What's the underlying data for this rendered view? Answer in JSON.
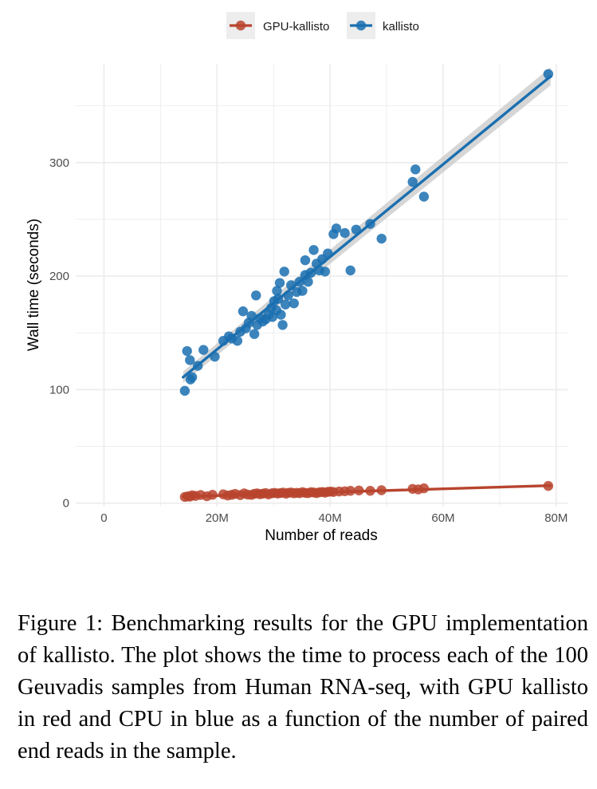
{
  "chart_data": {
    "type": "scatter",
    "xlabel": "Number of reads",
    "ylabel": "Wall time (seconds)",
    "xlim": [
      -5000000,
      82000000
    ],
    "ylim": [
      -3,
      387
    ],
    "x_ticks": [
      0,
      20000000,
      40000000,
      60000000,
      80000000
    ],
    "x_tick_labels": [
      "0",
      "20M",
      "40M",
      "60M",
      "80M"
    ],
    "y_ticks": [
      0,
      100,
      200,
      300
    ],
    "y_tick_labels": [
      "0",
      "100",
      "200",
      "300"
    ],
    "grid": true,
    "legend_position": "top",
    "series": [
      {
        "name": "GPU-kallisto",
        "color": "#B8442E",
        "points": [
          [
            14.3,
            5.5
          ],
          [
            14.8,
            6.0
          ],
          [
            15.2,
            5.8
          ],
          [
            15.6,
            7.0
          ],
          [
            16.2,
            6.4
          ],
          [
            17.1,
            7.2
          ],
          [
            18.2,
            6.1
          ],
          [
            19.2,
            7.4
          ],
          [
            21.1,
            7.8
          ],
          [
            21.9,
            6.8
          ],
          [
            22.6,
            7.4
          ],
          [
            23.2,
            8.2
          ],
          [
            24.1,
            7.1
          ],
          [
            24.8,
            8.6
          ],
          [
            25.4,
            7.6
          ],
          [
            26.1,
            7.3
          ],
          [
            26.6,
            8.3
          ],
          [
            27.1,
            8.6
          ],
          [
            27.6,
            7.9
          ],
          [
            28.1,
            8.4
          ],
          [
            28.6,
            8.9
          ],
          [
            29.1,
            7.7
          ],
          [
            29.7,
            8.7
          ],
          [
            30.2,
            9.1
          ],
          [
            30.7,
            8.5
          ],
          [
            31.2,
            8.9
          ],
          [
            31.7,
            9.3
          ],
          [
            32.2,
            8.4
          ],
          [
            32.6,
            9.1
          ],
          [
            33.1,
            9.4
          ],
          [
            33.6,
            8.7
          ],
          [
            34.1,
            9.2
          ],
          [
            34.6,
            8.8
          ],
          [
            35.1,
            9.7
          ],
          [
            35.6,
            9.1
          ],
          [
            36.1,
            8.8
          ],
          [
            36.6,
            9.7
          ],
          [
            37.1,
            9.4
          ],
          [
            37.6,
            8.9
          ],
          [
            38.1,
            9.6
          ],
          [
            38.6,
            9.9
          ],
          [
            39.1,
            9.3
          ],
          [
            39.6,
            10.0
          ],
          [
            40.1,
            10.2
          ],
          [
            40.6,
            9.9
          ],
          [
            41.6,
            10.3
          ],
          [
            42.6,
            10.5
          ],
          [
            43.6,
            10.9
          ],
          [
            45.1,
            11.2
          ],
          [
            47.1,
            10.9
          ],
          [
            49.1,
            11.4
          ],
          [
            54.6,
            12.6
          ],
          [
            55.6,
            12.1
          ],
          [
            56.6,
            13.1
          ],
          [
            78.6,
            15.2
          ]
        ],
        "fit_start": [
          14,
          5.8
        ],
        "fit_end": [
          79,
          15.5
        ]
      },
      {
        "name": "kallisto",
        "color": "#1A6FB0",
        "points": [
          [
            14.3,
            99
          ],
          [
            14.7,
            134
          ],
          [
            15.2,
            126
          ],
          [
            15.3,
            109
          ],
          [
            15.6,
            111
          ],
          [
            16.6,
            121
          ],
          [
            17.6,
            135
          ],
          [
            19.6,
            129
          ],
          [
            21.1,
            143
          ],
          [
            22.1,
            147
          ],
          [
            22.6,
            145
          ],
          [
            23.6,
            143
          ],
          [
            24.1,
            151
          ],
          [
            24.6,
            169
          ],
          [
            25.1,
            154
          ],
          [
            25.6,
            159
          ],
          [
            26.1,
            165
          ],
          [
            26.6,
            149
          ],
          [
            26.9,
            183
          ],
          [
            27.1,
            157
          ],
          [
            27.6,
            163
          ],
          [
            28.1,
            160
          ],
          [
            28.6,
            162
          ],
          [
            29.1,
            166
          ],
          [
            29.6,
            172
          ],
          [
            29.8,
            164
          ],
          [
            30.1,
            178
          ],
          [
            30.5,
            170
          ],
          [
            30.6,
            187
          ],
          [
            30.8,
            180
          ],
          [
            31.1,
            194
          ],
          [
            31.3,
            166
          ],
          [
            31.6,
            157
          ],
          [
            31.9,
            204
          ],
          [
            32.1,
            175
          ],
          [
            32.6,
            183
          ],
          [
            33.1,
            192
          ],
          [
            33.6,
            176
          ],
          [
            34.1,
            186
          ],
          [
            34.6,
            195
          ],
          [
            35.1,
            187
          ],
          [
            35.6,
            201
          ],
          [
            35.6,
            214
          ],
          [
            36.1,
            195
          ],
          [
            36.6,
            203
          ],
          [
            37.1,
            223
          ],
          [
            37.6,
            211
          ],
          [
            38.1,
            205
          ],
          [
            38.6,
            215
          ],
          [
            39.1,
            204
          ],
          [
            39.6,
            220
          ],
          [
            40.6,
            237
          ],
          [
            41.1,
            242
          ],
          [
            42.6,
            238
          ],
          [
            43.6,
            205
          ],
          [
            44.6,
            241
          ],
          [
            47.1,
            246
          ],
          [
            49.1,
            233
          ],
          [
            54.6,
            283
          ],
          [
            55.1,
            294
          ],
          [
            56.6,
            270
          ],
          [
            78.6,
            378
          ]
        ],
        "fit_start": [
          14,
          111
        ],
        "fit_end": [
          79,
          376
        ],
        "ci_band": {
          "x": [
            14,
            79
          ],
          "lower_start": 106,
          "upper_start": 116,
          "lower_end": 368,
          "upper_end": 384
        }
      }
    ]
  },
  "caption": "Figure 1: Benchmarking results for the GPU implementation of kallisto. The plot shows the time to process each of the 100 Geuvadis samples from Human RNA-seq, with GPU kallisto in red and CPU in blue as a function of the number of paired end reads in the sample.",
  "colors": {
    "gpu": "#B8442E",
    "cpu": "#1A6FB0",
    "ci_band": "#C8C8C8",
    "grid": "#EBEBEB"
  }
}
